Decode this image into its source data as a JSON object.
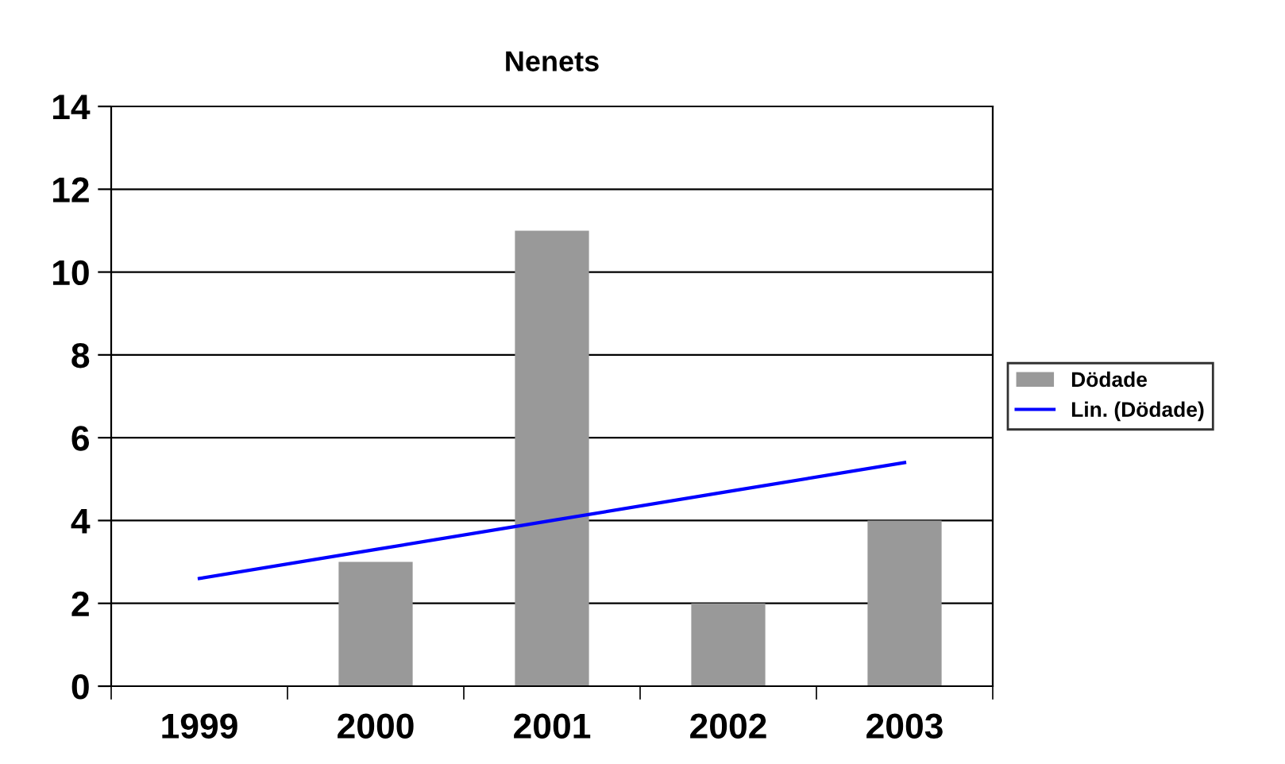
{
  "chart_data": {
    "type": "bar",
    "title": "Nenets",
    "categories": [
      "1999",
      "2000",
      "2001",
      "2002",
      "2003"
    ],
    "series": [
      {
        "name": "Dödade",
        "color": "#999999",
        "values": [
          0,
          3,
          11,
          2,
          4
        ]
      },
      {
        "name": "Lin. (Dödade)",
        "type": "line",
        "color": "#0000ff",
        "values": [
          2.6,
          3.3,
          4.0,
          4.7,
          5.4
        ]
      }
    ],
    "ylim": [
      0,
      14
    ],
    "yticks": [
      0,
      2,
      4,
      6,
      8,
      10,
      12,
      14
    ],
    "grid": "y",
    "legend": "right",
    "marker": "none",
    "line_style": "solid"
  }
}
